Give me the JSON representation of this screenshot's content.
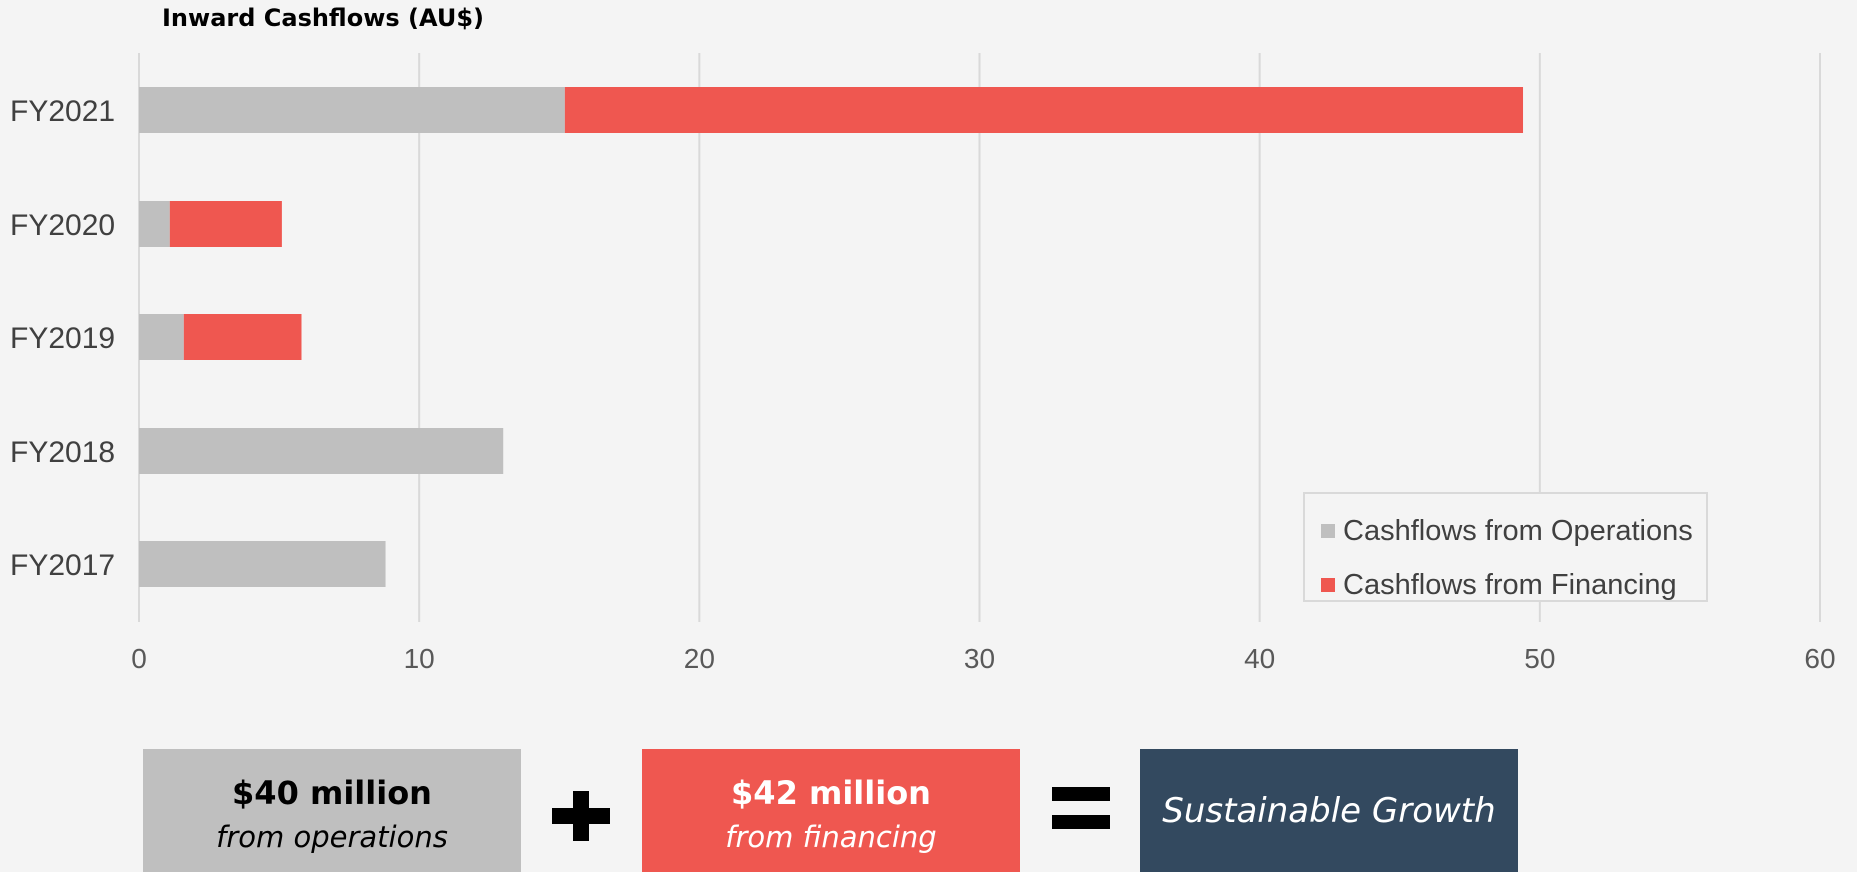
{
  "chart_data": {
    "type": "bar",
    "orientation": "horizontal",
    "stacked": true,
    "title": "Inward Cashflows (AU$)",
    "categories": [
      "FY2021",
      "FY2020",
      "FY2019",
      "FY2018",
      "FY2017"
    ],
    "series": [
      {
        "name": "Cashflows from Operations",
        "color": "#bfbfbf",
        "values": [
          15.2,
          1.1,
          1.6,
          13.0,
          8.8
        ]
      },
      {
        "name": "Cashflows from Financing",
        "color": "#ef5750",
        "values": [
          34.2,
          4.0,
          4.2,
          0,
          0
        ]
      }
    ],
    "xlim": [
      0,
      60
    ],
    "xticks": [
      "0",
      "10",
      "20",
      "30",
      "40",
      "50",
      "60"
    ],
    "grid": true,
    "legend_position": "bottom-right"
  },
  "summary": {
    "operations": {
      "amount": "$40 million",
      "subtitle": "from operations"
    },
    "financing": {
      "amount": "$42 million",
      "subtitle": "from financing"
    },
    "result": "Sustainable Growth",
    "plus_icon": "plus-icon",
    "equals_icon": "equals-icon"
  }
}
